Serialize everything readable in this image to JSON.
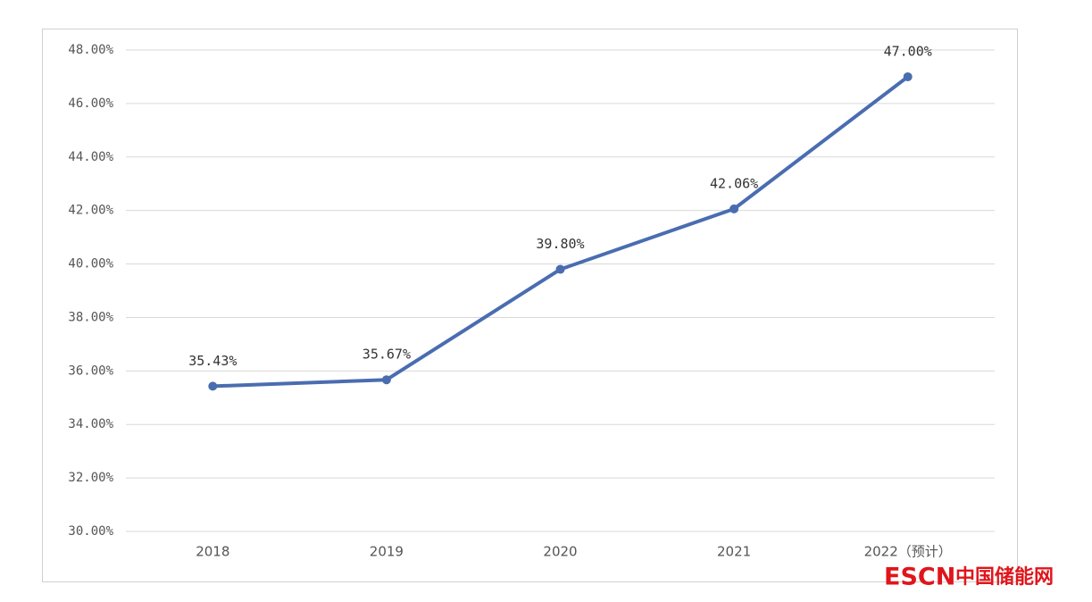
{
  "chart_data": {
    "type": "line",
    "categories": [
      "2018",
      "2019",
      "2020",
      "2021",
      "2022（预计）"
    ],
    "values": [
      35.43,
      35.67,
      39.8,
      42.06,
      47
    ],
    "value_labels": [
      "35.43%",
      "35.67%",
      "39.80%",
      "42.06%",
      "47.00%"
    ],
    "color": "#4a6db0",
    "ylim": [
      30,
      48
    ],
    "yticks": [
      {
        "value": 30,
        "label": "30.00%"
      },
      {
        "value": 32,
        "label": "32.00%"
      },
      {
        "value": 34,
        "label": "34.00%"
      },
      {
        "value": 36,
        "label": "36.00%"
      },
      {
        "value": 38,
        "label": "38.00%"
      },
      {
        "value": 40,
        "label": "40.00%"
      },
      {
        "value": 42,
        "label": "42.00%"
      },
      {
        "value": 44,
        "label": "44.00%"
      },
      {
        "value": 46,
        "label": "46.00%"
      },
      {
        "value": 48,
        "label": "48.00%"
      }
    ],
    "grid": true,
    "watermark": {
      "brand": "ESCN",
      "label": "中国储能网"
    }
  }
}
